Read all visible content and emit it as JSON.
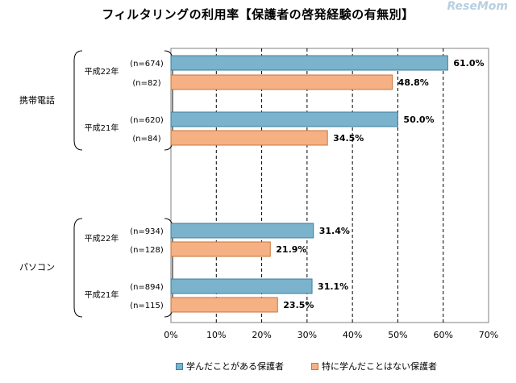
{
  "title": "フィルタリングの利用率【保護者の啓発経験の有無別】",
  "logo": "ReseMom",
  "colors": {
    "series1": "#7ab3cb",
    "series1_border": "#3c7f9d",
    "series2": "#f5b183",
    "series2_border": "#c9753b",
    "grid": "#000000"
  },
  "chart_data": {
    "type": "bar",
    "orientation": "horizontal",
    "title": "フィルタリングの利用率【保護者の啓発経験の有無別】",
    "xlim": [
      0,
      70
    ],
    "x_ticks": [
      "0%",
      "10%",
      "20%",
      "30%",
      "40%",
      "50%",
      "60%",
      "70%"
    ],
    "groups": [
      {
        "name": "携帯電話",
        "subgroups": [
          {
            "year": "平成22年",
            "bars": [
              {
                "series": 0,
                "n": "(n=674)",
                "value": 61.0,
                "label": "61.0%"
              },
              {
                "series": 1,
                "n": "(n=82)",
                "value": 48.8,
                "label": "48.8%"
              }
            ]
          },
          {
            "year": "平成21年",
            "bars": [
              {
                "series": 0,
                "n": "(n=620)",
                "value": 50.0,
                "label": "50.0%"
              },
              {
                "series": 1,
                "n": "(n=84)",
                "value": 34.5,
                "label": "34.5%"
              }
            ]
          }
        ]
      },
      {
        "name": "パソコン",
        "subgroups": [
          {
            "year": "平成22年",
            "bars": [
              {
                "series": 0,
                "n": "(n=934)",
                "value": 31.4,
                "label": "31.4%"
              },
              {
                "series": 1,
                "n": "(n=128)",
                "value": 21.9,
                "label": "21.9%"
              }
            ]
          },
          {
            "year": "平成21年",
            "bars": [
              {
                "series": 0,
                "n": "(n=894)",
                "value": 31.1,
                "label": "31.1%"
              },
              {
                "series": 1,
                "n": "(n=115)",
                "value": 23.5,
                "label": "23.5%"
              }
            ]
          }
        ]
      }
    ],
    "series": [
      {
        "name": "学んだことがある保護者"
      },
      {
        "name": "特に学んだことはない保護者"
      }
    ]
  }
}
